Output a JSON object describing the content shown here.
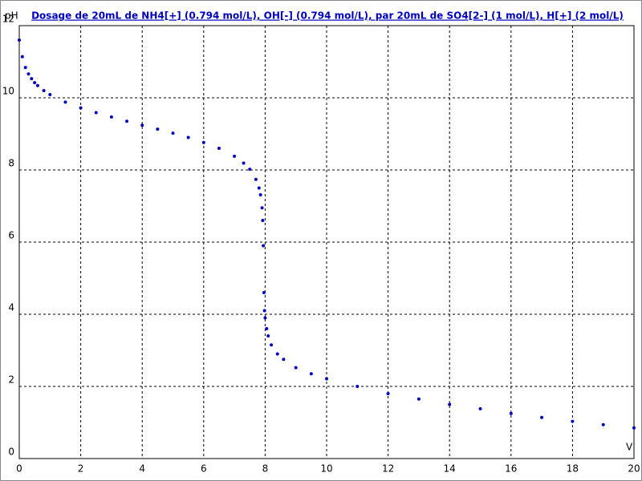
{
  "chart_data": {
    "type": "scatter",
    "title": "Dosage de 20mL de NH4[+] (0.794 mol/L), OH[-] (0.794 mol/L),  par 20mL  de SO4[2-] (1 mol/L), H[+] (2 mol/L)",
    "x_label": "V",
    "y_label": "pH",
    "color": "#0000c0",
    "x": [
      0,
      0.1,
      0.2,
      0.3,
      0.4,
      0.5,
      0.6,
      0.8,
      1.0,
      1.5,
      2.0,
      2.5,
      3.0,
      3.5,
      4.0,
      4.5,
      5.0,
      5.5,
      6.0,
      6.5,
      7.0,
      7.3,
      7.5,
      7.7,
      7.8,
      7.85,
      7.9,
      7.92,
      7.94,
      7.96,
      7.98,
      8.0,
      8.05,
      8.1,
      8.2,
      8.4,
      8.6,
      9.0,
      9.5,
      10.0,
      11,
      12,
      13,
      14,
      15,
      16,
      17,
      18,
      19,
      20
    ],
    "y": [
      11.6,
      11.14,
      10.84,
      10.66,
      10.53,
      10.42,
      10.34,
      10.2,
      10.09,
      9.88,
      9.72,
      9.59,
      9.47,
      9.35,
      9.24,
      9.13,
      9.02,
      8.9,
      8.76,
      8.6,
      8.38,
      8.19,
      8.02,
      7.74,
      7.5,
      7.31,
      6.95,
      6.6,
      5.9,
      4.6,
      4.1,
      3.9,
      3.6,
      3.4,
      3.15,
      2.9,
      2.75,
      2.52,
      2.35,
      2.21,
      2.0,
      1.8,
      1.65,
      1.5,
      1.38,
      1.25,
      1.14,
      1.03,
      0.94,
      0.85
    ],
    "xlim": [
      0,
      20
    ],
    "ylim": [
      0,
      12
    ],
    "xticks": [
      0,
      2,
      4,
      6,
      8,
      10,
      12,
      14,
      16,
      18,
      20
    ],
    "yticks": [
      0,
      2,
      4,
      6,
      8,
      10,
      12
    ],
    "grid": true
  }
}
